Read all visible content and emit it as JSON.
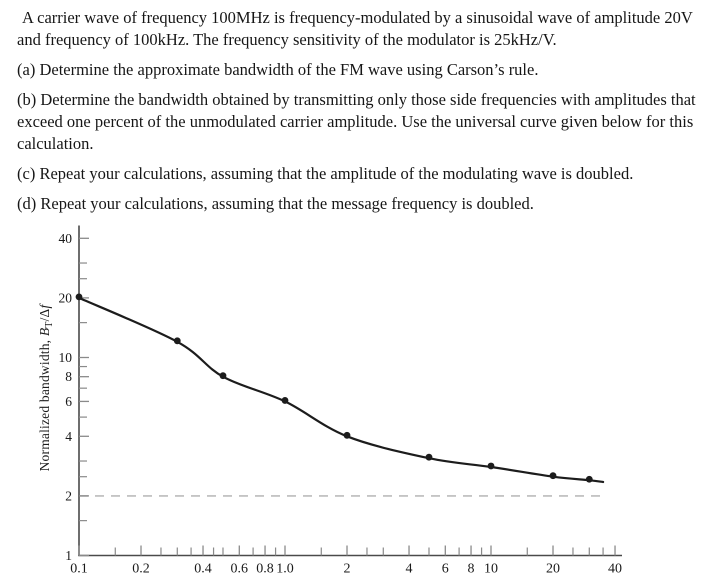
{
  "problem": {
    "intro": "A carrier wave of frequency 100MHz is frequency-modulated by a sinusoidal wave of amplitude 20V and frequency of 100kHz. The frequency sensitivity of the modulator is 25kHz/V.",
    "parts": [
      {
        "label": "(a)",
        "text": "Determine the approximate bandwidth of the FM wave using Carson’s rule."
      },
      {
        "label": "(b)",
        "text": "Determine the bandwidth obtained by transmitting only those side frequencies with amplitudes that exceed one percent of the unmodulated carrier amplitude. Use the universal curve given below for this calculation."
      },
      {
        "label": "(c)",
        "text": "Repeat your calculations, assuming that the amplitude of the modulating wave is doubled."
      },
      {
        "label": "(d)",
        "text": "Repeat your calculations, assuming that the message frequency is doubled."
      }
    ]
  },
  "chart_data": {
    "type": "line",
    "title": "",
    "xscale": "log",
    "yscale": "log",
    "xlim": [
      0.1,
      46
    ],
    "ylim": [
      1,
      46
    ],
    "x": [
      0.1,
      0.3,
      0.5,
      1.0,
      2.0,
      5.0,
      10,
      20,
      30
    ],
    "y": [
      20,
      12,
      8,
      6,
      4,
      3.1,
      2.8,
      2.5,
      2.4
    ],
    "line_end": {
      "x": 35,
      "y": 2.35
    },
    "marker": "circle",
    "grid": "off",
    "legend": "none",
    "ylabel_segments": [
      "Normalized bandwidth, ",
      "B",
      "T",
      "/Δ",
      "f"
    ],
    "x_major_ticks": {
      "values": [
        0.1,
        0.2,
        0.4,
        0.6,
        0.8,
        1.0,
        2,
        4,
        6,
        8,
        10,
        20,
        40
      ],
      "labels": [
        "0.1",
        "0.2",
        "0.4",
        "0.6",
        "0.8",
        "1.0",
        "2",
        "4",
        "6",
        "8",
        "10",
        "20",
        "40"
      ]
    },
    "x_minor_ticks": [
      0.15,
      0.25,
      0.3,
      0.35,
      0.45,
      0.5,
      0.7,
      0.9,
      1.5,
      2.5,
      3,
      5,
      7,
      9,
      15,
      25,
      30,
      35
    ],
    "y_major_ticks": {
      "values": [
        1,
        2,
        4,
        6,
        8,
        10,
        20,
        40
      ],
      "labels": [
        "1",
        "2",
        "4",
        "6",
        "8",
        "10",
        "20",
        "40"
      ]
    },
    "y_minor_ticks": [
      1.5,
      2.5,
      3,
      5,
      7,
      9,
      15,
      25,
      30
    ],
    "dashed_line_y": 2,
    "colors": {
      "curve": "#1c1c1c",
      "marker": "#1c1c1c",
      "axis": "#4a4a4a",
      "tick": "#8a8a8a",
      "dashed": "#bcbcbc",
      "text": "#1a1a1a"
    }
  }
}
